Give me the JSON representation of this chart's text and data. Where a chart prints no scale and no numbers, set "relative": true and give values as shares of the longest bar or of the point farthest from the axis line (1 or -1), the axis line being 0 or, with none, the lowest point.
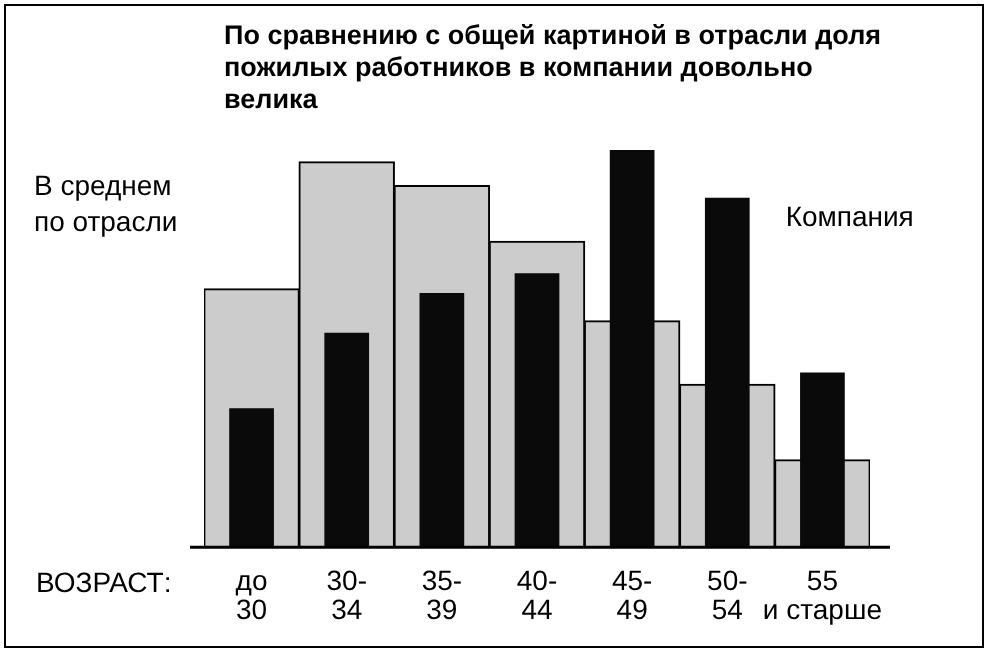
{
  "chart_data": {
    "type": "bar",
    "title": "По сравнению с общей картиной в отрасли доля пожилых работников в компании довольно велика",
    "xlabel": "ВОЗРАСТ:",
    "categories": [
      "до 30",
      "30-34",
      "35-39",
      "40-44",
      "45-49",
      "50-54",
      "55 и старше"
    ],
    "relative": true,
    "legend": false,
    "grid": false,
    "series": [
      {
        "name": "В среднем по отрасли",
        "color": "#cccccc",
        "values": [
          0.65,
          0.97,
          0.91,
          0.77,
          0.57,
          0.41,
          0.22
        ]
      },
      {
        "name": "Компания",
        "color": "#0a0a0a",
        "values": [
          0.35,
          0.54,
          0.64,
          0.69,
          1,
          0.88,
          0.44
        ]
      }
    ]
  }
}
